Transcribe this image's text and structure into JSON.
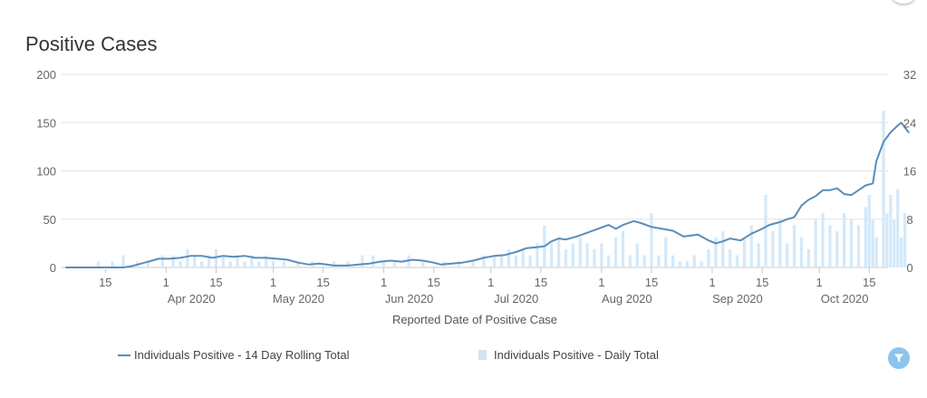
{
  "header": {
    "title": "Positive Cases"
  },
  "legend": {
    "line_label": "Individuals Positive - 14 Day Rolling Total",
    "bar_label": "Individuals Positive - Daily Total"
  },
  "colors": {
    "line": "#5b8db8",
    "bars": "#d3e9fa",
    "grid": "#e3e3e3",
    "filter_button": "#8dc4ec"
  },
  "icons": {
    "filter": "filter-icon"
  },
  "chart_data": {
    "type": "line",
    "title": "Positive Cases",
    "xlabel": "Reported Date of Positive Case",
    "x_range": [
      "2020-03-04",
      "2020-10-19"
    ],
    "y_left": {
      "range": [
        0,
        200
      ],
      "ticks": [
        "0",
        "50",
        "100",
        "150",
        "200"
      ]
    },
    "y_right": {
      "range": [
        0,
        32
      ],
      "ticks": [
        "0",
        "8",
        "16",
        "24",
        "32"
      ]
    },
    "grid": true,
    "legend_position": "bottom",
    "x_ticks": [
      {
        "date": "2020-03-15",
        "day": "15",
        "month": ""
      },
      {
        "date": "2020-04-01",
        "day": "1",
        "month": "Apr 2020"
      },
      {
        "date": "2020-04-15",
        "day": "15",
        "month": ""
      },
      {
        "date": "2020-05-01",
        "day": "1",
        "month": "May 2020"
      },
      {
        "date": "2020-05-15",
        "day": "15",
        "month": ""
      },
      {
        "date": "2020-06-01",
        "day": "1",
        "month": "Jun 2020"
      },
      {
        "date": "2020-06-15",
        "day": "15",
        "month": ""
      },
      {
        "date": "2020-07-01",
        "day": "1",
        "month": "Jul 2020"
      },
      {
        "date": "2020-07-15",
        "day": "15",
        "month": ""
      },
      {
        "date": "2020-08-01",
        "day": "1",
        "month": "Aug 2020"
      },
      {
        "date": "2020-08-15",
        "day": "15",
        "month": ""
      },
      {
        "date": "2020-09-01",
        "day": "1",
        "month": "Sep 2020"
      },
      {
        "date": "2020-09-15",
        "day": "15",
        "month": ""
      },
      {
        "date": "2020-10-01",
        "day": "1",
        "month": "Oct 2020"
      },
      {
        "date": "2020-10-15",
        "day": "15",
        "month": ""
      }
    ],
    "series": [
      {
        "name": "Individuals Positive - 14 Day Rolling Total",
        "type": "line",
        "axis": "left",
        "points": [
          [
            "2020-03-04",
            0
          ],
          [
            "2020-03-20",
            0
          ],
          [
            "2020-03-22",
            1
          ],
          [
            "2020-03-24",
            3
          ],
          [
            "2020-03-26",
            5
          ],
          [
            "2020-03-28",
            7
          ],
          [
            "2020-03-30",
            9
          ],
          [
            "2020-04-02",
            9
          ],
          [
            "2020-04-05",
            10
          ],
          [
            "2020-04-08",
            12
          ],
          [
            "2020-04-11",
            12
          ],
          [
            "2020-04-14",
            10
          ],
          [
            "2020-04-17",
            12
          ],
          [
            "2020-04-20",
            11
          ],
          [
            "2020-04-23",
            12
          ],
          [
            "2020-04-26",
            10
          ],
          [
            "2020-04-29",
            10
          ],
          [
            "2020-05-02",
            9
          ],
          [
            "2020-05-05",
            8
          ],
          [
            "2020-05-08",
            5
          ],
          [
            "2020-05-11",
            3
          ],
          [
            "2020-05-14",
            4
          ],
          [
            "2020-05-16",
            3
          ],
          [
            "2020-05-18",
            2
          ],
          [
            "2020-05-22",
            2
          ],
          [
            "2020-05-25",
            3
          ],
          [
            "2020-05-28",
            4
          ],
          [
            "2020-05-31",
            6
          ],
          [
            "2020-06-03",
            7
          ],
          [
            "2020-06-06",
            6
          ],
          [
            "2020-06-09",
            8
          ],
          [
            "2020-06-12",
            7
          ],
          [
            "2020-06-15",
            5
          ],
          [
            "2020-06-17",
            3
          ],
          [
            "2020-06-20",
            4
          ],
          [
            "2020-06-23",
            5
          ],
          [
            "2020-06-26",
            7
          ],
          [
            "2020-06-29",
            10
          ],
          [
            "2020-07-02",
            12
          ],
          [
            "2020-07-05",
            13
          ],
          [
            "2020-07-08",
            16
          ],
          [
            "2020-07-11",
            20
          ],
          [
            "2020-07-14",
            21
          ],
          [
            "2020-07-16",
            22
          ],
          [
            "2020-07-18",
            27
          ],
          [
            "2020-07-20",
            30
          ],
          [
            "2020-07-22",
            29
          ],
          [
            "2020-07-25",
            32
          ],
          [
            "2020-07-28",
            36
          ],
          [
            "2020-07-31",
            40
          ],
          [
            "2020-08-03",
            44
          ],
          [
            "2020-08-05",
            40
          ],
          [
            "2020-08-07",
            44
          ],
          [
            "2020-08-10",
            48
          ],
          [
            "2020-08-12",
            46
          ],
          [
            "2020-08-15",
            42
          ],
          [
            "2020-08-18",
            40
          ],
          [
            "2020-08-21",
            38
          ],
          [
            "2020-08-24",
            32
          ],
          [
            "2020-08-26",
            33
          ],
          [
            "2020-08-28",
            34
          ],
          [
            "2020-08-31",
            28
          ],
          [
            "2020-09-02",
            25
          ],
          [
            "2020-09-04",
            27
          ],
          [
            "2020-09-06",
            30
          ],
          [
            "2020-09-09",
            28
          ],
          [
            "2020-09-12",
            35
          ],
          [
            "2020-09-15",
            40
          ],
          [
            "2020-09-17",
            44
          ],
          [
            "2020-09-20",
            47
          ],
          [
            "2020-09-22",
            50
          ],
          [
            "2020-09-24",
            52
          ],
          [
            "2020-09-26",
            64
          ],
          [
            "2020-09-28",
            70
          ],
          [
            "2020-09-30",
            74
          ],
          [
            "2020-10-02",
            80
          ],
          [
            "2020-10-04",
            80
          ],
          [
            "2020-10-06",
            82
          ],
          [
            "2020-10-08",
            76
          ],
          [
            "2020-10-10",
            75
          ],
          [
            "2020-10-12",
            80
          ],
          [
            "2020-10-14",
            85
          ],
          [
            "2020-10-16",
            87
          ],
          [
            "2020-10-17",
            110
          ],
          [
            "2020-10-19",
            130
          ],
          [
            "2020-10-21",
            140
          ],
          [
            "2020-10-23",
            147
          ],
          [
            "2020-10-24",
            150
          ],
          [
            "2020-10-25",
            145
          ],
          [
            "2020-10-26",
            140
          ]
        ]
      },
      {
        "name": "Individuals Positive - Daily Total",
        "type": "bar",
        "axis": "right",
        "points": [
          [
            "2020-03-13",
            1
          ],
          [
            "2020-03-17",
            1
          ],
          [
            "2020-03-20",
            2
          ],
          [
            "2020-03-24",
            1
          ],
          [
            "2020-03-27",
            1
          ],
          [
            "2020-03-31",
            2
          ],
          [
            "2020-04-03",
            2
          ],
          [
            "2020-04-05",
            1
          ],
          [
            "2020-04-07",
            3
          ],
          [
            "2020-04-09",
            2
          ],
          [
            "2020-04-11",
            1
          ],
          [
            "2020-04-13",
            2
          ],
          [
            "2020-04-15",
            3
          ],
          [
            "2020-04-17",
            2
          ],
          [
            "2020-04-19",
            1
          ],
          [
            "2020-04-21",
            2
          ],
          [
            "2020-04-23",
            1
          ],
          [
            "2020-04-25",
            2
          ],
          [
            "2020-04-27",
            1
          ],
          [
            "2020-04-29",
            2
          ],
          [
            "2020-05-01",
            1
          ],
          [
            "2020-05-04",
            1
          ],
          [
            "2020-05-08",
            1
          ],
          [
            "2020-05-12",
            1
          ],
          [
            "2020-05-18",
            1
          ],
          [
            "2020-05-22",
            1
          ],
          [
            "2020-05-26",
            2
          ],
          [
            "2020-05-29",
            2
          ],
          [
            "2020-06-01",
            1
          ],
          [
            "2020-06-04",
            1
          ],
          [
            "2020-06-08",
            2
          ],
          [
            "2020-06-12",
            1
          ],
          [
            "2020-06-18",
            1
          ],
          [
            "2020-06-22",
            1
          ],
          [
            "2020-06-26",
            1
          ],
          [
            "2020-06-29",
            2
          ],
          [
            "2020-07-02",
            2
          ],
          [
            "2020-07-04",
            2
          ],
          [
            "2020-07-06",
            3
          ],
          [
            "2020-07-08",
            2
          ],
          [
            "2020-07-10",
            3
          ],
          [
            "2020-07-12",
            2
          ],
          [
            "2020-07-14",
            4
          ],
          [
            "2020-07-16",
            7
          ],
          [
            "2020-07-18",
            4
          ],
          [
            "2020-07-20",
            5
          ],
          [
            "2020-07-22",
            3
          ],
          [
            "2020-07-24",
            4
          ],
          [
            "2020-07-26",
            5
          ],
          [
            "2020-07-28",
            4
          ],
          [
            "2020-07-30",
            3
          ],
          [
            "2020-08-01",
            4
          ],
          [
            "2020-08-03",
            2
          ],
          [
            "2020-08-05",
            5
          ],
          [
            "2020-08-07",
            6
          ],
          [
            "2020-08-09",
            2
          ],
          [
            "2020-08-11",
            4
          ],
          [
            "2020-08-13",
            2
          ],
          [
            "2020-08-15",
            9
          ],
          [
            "2020-08-17",
            2
          ],
          [
            "2020-08-19",
            5
          ],
          [
            "2020-08-21",
            2
          ],
          [
            "2020-08-23",
            1
          ],
          [
            "2020-08-25",
            1
          ],
          [
            "2020-08-27",
            2
          ],
          [
            "2020-08-29",
            1
          ],
          [
            "2020-08-31",
            3
          ],
          [
            "2020-09-02",
            5
          ],
          [
            "2020-09-04",
            6
          ],
          [
            "2020-09-06",
            3
          ],
          [
            "2020-09-08",
            2
          ],
          [
            "2020-09-10",
            5
          ],
          [
            "2020-09-12",
            7
          ],
          [
            "2020-09-14",
            4
          ],
          [
            "2020-09-16",
            12
          ],
          [
            "2020-09-18",
            6
          ],
          [
            "2020-09-20",
            8
          ],
          [
            "2020-09-22",
            4
          ],
          [
            "2020-09-24",
            7
          ],
          [
            "2020-09-26",
            5
          ],
          [
            "2020-09-28",
            3
          ],
          [
            "2020-09-30",
            8
          ],
          [
            "2020-10-02",
            9
          ],
          [
            "2020-10-04",
            7
          ],
          [
            "2020-10-06",
            6
          ],
          [
            "2020-10-08",
            9
          ],
          [
            "2020-10-10",
            8
          ],
          [
            "2020-10-12",
            7
          ],
          [
            "2020-10-14",
            10
          ],
          [
            "2020-10-15",
            12
          ],
          [
            "2020-10-16",
            8
          ],
          [
            "2020-10-17",
            5
          ],
          [
            "2020-10-19",
            26
          ],
          [
            "2020-10-20",
            9
          ],
          [
            "2020-10-21",
            12
          ],
          [
            "2020-10-22",
            8
          ],
          [
            "2020-10-23",
            13
          ],
          [
            "2020-10-24",
            5
          ],
          [
            "2020-10-25",
            9
          ]
        ]
      }
    ]
  }
}
